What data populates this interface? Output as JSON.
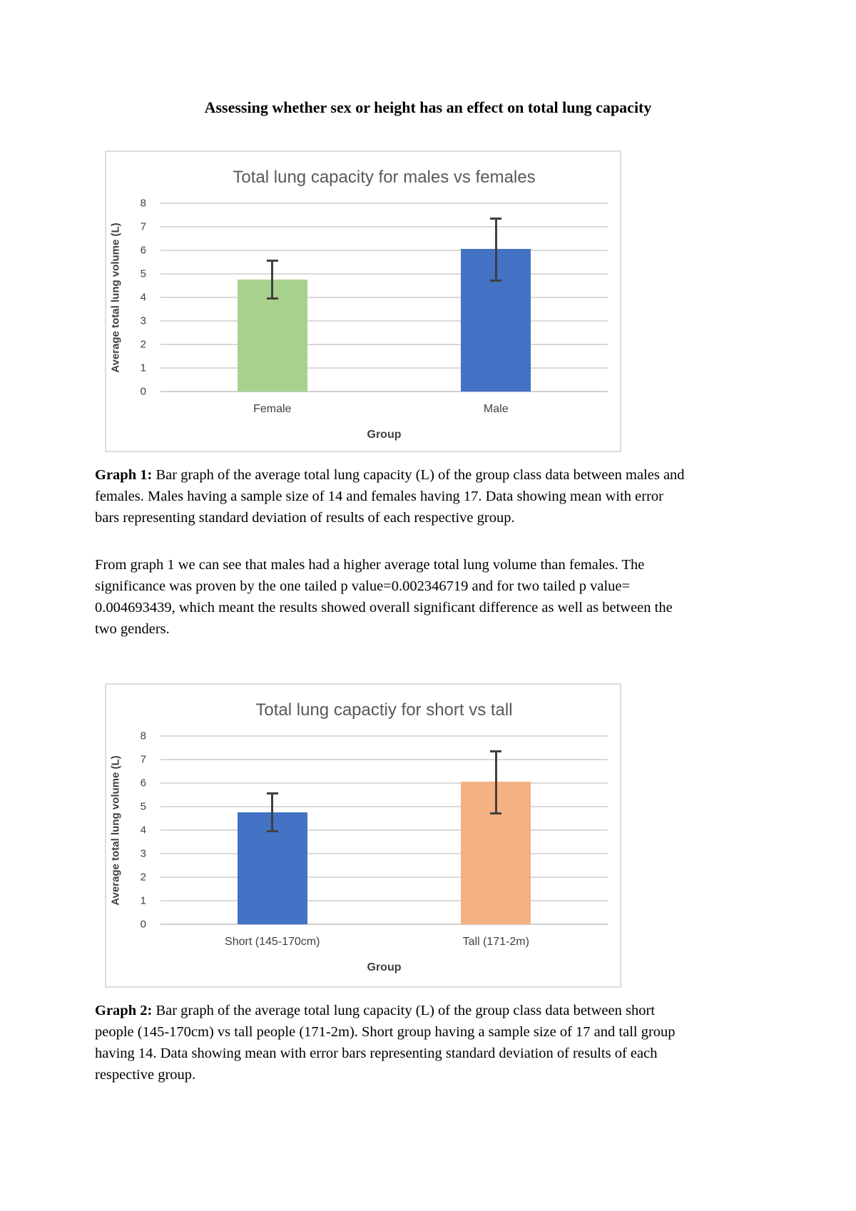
{
  "document": {
    "title": "Assessing whether sex or height has an effect on total lung capacity",
    "captions": [
      {
        "label": "Graph 1:",
        "text": " Bar graph of the average total lung capacity (L) of the group class data between males and females. Males having a sample size of 14 and females having 17. Data showing mean with error bars representing standard deviation of results of each respective group."
      },
      {
        "label": "Graph 2:",
        "text": " Bar graph of the average total lung capacity (L) of the group class data between short people (145-170cm) vs tall people (171-2m). Short group having a sample size of 17 and tall group having 14. Data showing mean with error bars representing standard deviation of results of each respective group."
      }
    ],
    "paragraph": "From graph 1 we can see that males had a higher average total lung volume than females. The significance was proven by the one tailed p value=0.002346719 and for two tailed p value= 0.004693439, which meant the results showed overall significant difference as well as between the two genders."
  },
  "chart_data": [
    {
      "type": "bar",
      "title": "Total lung capacity for males vs females",
      "categories": [
        "Female",
        "Male"
      ],
      "values": [
        4.75,
        6.05
      ],
      "error_low": [
        3.9,
        4.67
      ],
      "error_high": [
        5.6,
        7.4
      ],
      "bar_colors": [
        "#a9d18e",
        "#4472c4"
      ],
      "error_bar_color": "#404040",
      "gridline_color": "#d9d9d9",
      "xlabel": "Group",
      "ylabel": "Average total lung volume (L)",
      "ylim": [
        0,
        8
      ],
      "ytick_step": 1,
      "grid": true,
      "legend": false
    },
    {
      "type": "bar",
      "title": "Total lung capactiy for short vs tall",
      "categories": [
        "Short (145-170cm)",
        "Tall (171-2m)"
      ],
      "values": [
        4.75,
        6.05
      ],
      "error_low": [
        3.9,
        4.67
      ],
      "error_high": [
        5.6,
        7.4
      ],
      "bar_colors": [
        "#4472c4",
        "#f4b183"
      ],
      "error_bar_color": "#404040",
      "gridline_color": "#d9d9d9",
      "xlabel": "Group",
      "ylabel": "Average total lung volume (L)",
      "ylim": [
        0,
        8
      ],
      "ytick_step": 1,
      "grid": true,
      "legend": false
    }
  ]
}
